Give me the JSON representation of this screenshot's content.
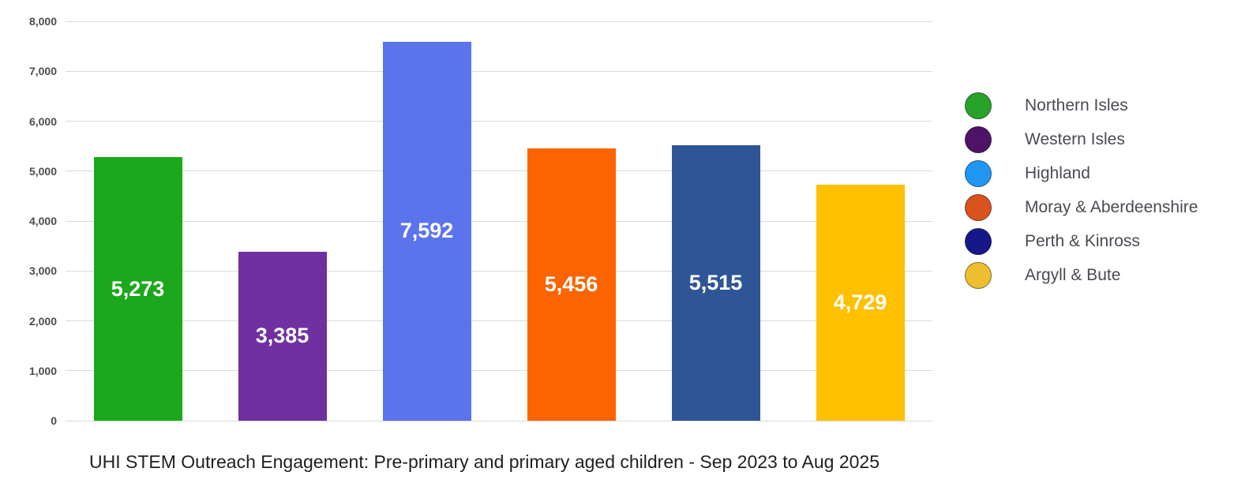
{
  "chart_data": {
    "type": "bar",
    "title": "UHI STEM Outreach Engagement: Pre-primary and primary aged children - Sep 2023 to Aug 2025",
    "xlabel": "",
    "ylabel": "",
    "categories": [
      "Northern Isles",
      "Western Isles",
      "Highland",
      "Moray & Aberdeenshire",
      "Perth & Kinross",
      "Argyll & Bute"
    ],
    "values": [
      5273,
      3385,
      7592,
      5456,
      5515,
      4729
    ],
    "value_labels": [
      "5,273",
      "3,385",
      "7,592",
      "5,456",
      "5,515",
      "4,729"
    ],
    "bar_colors": [
      "#1CA81C",
      "#7030A0",
      "#5B73EB",
      "#FB6400",
      "#2F5596",
      "#FFC000"
    ],
    "legend_colors": [
      "#28A228",
      "#4E1267",
      "#2196F3",
      "#D9531E",
      "#17178C",
      "#EEBE31"
    ],
    "ylim": [
      0,
      8000
    ],
    "ytick_interval": 1000,
    "ytick_labels": [
      "0",
      "1,000",
      "2,000",
      "3,000",
      "4,000",
      "5,000",
      "6,000",
      "7,000",
      "8,000"
    ],
    "grid": true,
    "legend_position": "right",
    "value_label_color": "#FFFFFF",
    "axis_label_color": "#4D4D4D",
    "gridline_color": "#DADADA"
  }
}
